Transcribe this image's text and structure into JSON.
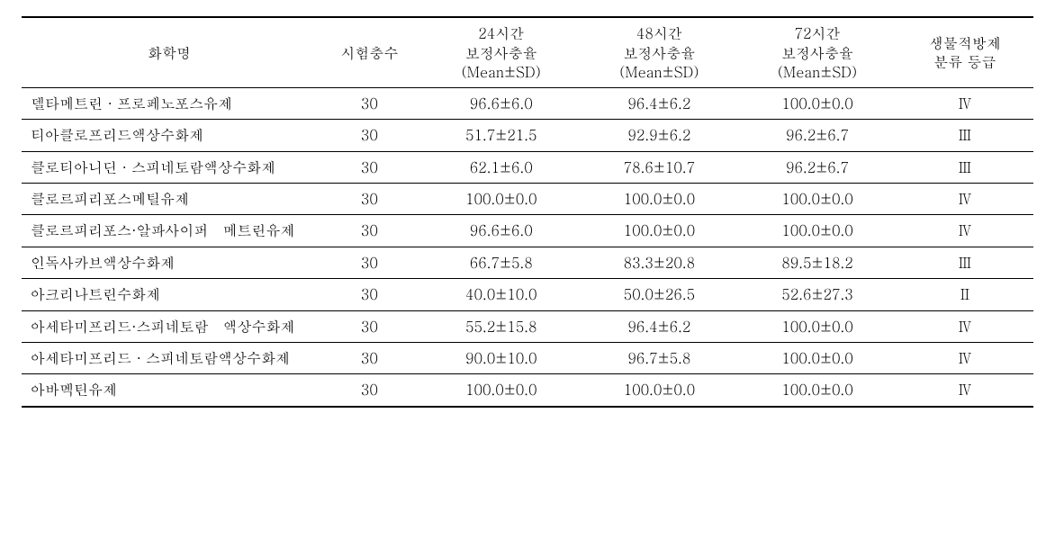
{
  "table": {
    "type": "table",
    "background_color": "#ffffff",
    "text_color": "#000000",
    "border_color": "#000000",
    "top_border_width": 2,
    "row_border_width": 1,
    "bottom_border_width": 2,
    "font_family": "Malgun Gothic / Batang serif",
    "header_fontsize": 16,
    "body_fontsize": 16,
    "column_widths_pct": [
      28,
      10,
      15,
      15,
      15,
      13
    ],
    "column_align": [
      "left",
      "center",
      "center",
      "center",
      "center",
      "center"
    ],
    "columns": [
      "화학명",
      "시험충수",
      "24시간\n보정사충율\n(Mean±SD)",
      "48시간\n보정사충율\n(Mean±SD)",
      "72시간\n보정사충율\n(Mean±SD)",
      "생물적방제\n분류 등급"
    ],
    "rows": [
      {
        "name": "델타메트린 · 프로페노포스유제",
        "count": 30,
        "h24": "96.6±6.0",
        "h48": "96.4±6.2",
        "h72": "100.0±0.0",
        "grade": "Ⅳ"
      },
      {
        "name": "티아클로프리드액상수화제",
        "count": 30,
        "h24": "51.7±21.5",
        "h48": "92.9±6.2",
        "h72": "96.2±6.7",
        "grade": "Ⅲ"
      },
      {
        "name": "클로티아니딘 · 스피네토람액상수화제",
        "count": 30,
        "h24": "62.1±6.0",
        "h48": "78.6±10.7",
        "h72": "96.2±6.7",
        "grade": "Ⅲ"
      },
      {
        "name": "클로르피리포스메틸유제",
        "count": 30,
        "h24": "100.0±0.0",
        "h48": "100.0±0.0",
        "h72": "100.0±0.0",
        "grade": "Ⅳ"
      },
      {
        "name": "클로르피리포스·알파사이퍼　메트린유제",
        "count": 30,
        "h24": "96.6±6.0",
        "h48": "100.0±0.0",
        "h72": "100.0±0.0",
        "grade": "Ⅳ"
      },
      {
        "name": "인독사카브액상수화제",
        "count": 30,
        "h24": "66.7±5.8",
        "h48": "83.3±20.8",
        "h72": "89.5±18.2",
        "grade": "Ⅲ"
      },
      {
        "name": "아크리나트린수화제",
        "count": 30,
        "h24": "40.0±10.0",
        "h48": "50.0±26.5",
        "h72": "52.6±27.3",
        "grade": "Ⅱ"
      },
      {
        "name": "아세타미프리드·스피네토람　액상수화제",
        "count": 30,
        "h24": "55.2±15.8",
        "h48": "96.4±6.2",
        "h72": "100.0±0.0",
        "grade": "Ⅳ"
      },
      {
        "name": "아세타미프리드 · 스피네토람액상수화제",
        "count": 30,
        "h24": "90.0±10.0",
        "h48": "96.7±5.8",
        "h72": "100.0±0.0",
        "grade": "Ⅳ"
      },
      {
        "name": "아바멕틴유제",
        "count": 30,
        "h24": "100.0±0.0",
        "h48": "100.0±0.0",
        "h72": "100.0±0.0",
        "grade": "Ⅳ"
      }
    ]
  }
}
